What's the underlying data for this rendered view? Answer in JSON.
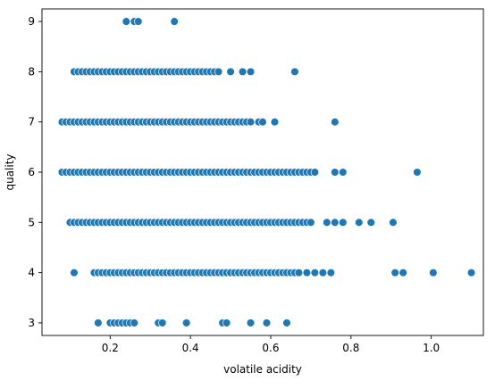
{
  "chart_data": {
    "type": "scatter",
    "title": "",
    "xlabel": "volatile acidity",
    "ylabel": "quality",
    "xlim": [
      0.03,
      1.13
    ],
    "ylim": [
      2.75,
      9.25
    ],
    "x_ticks": [
      0.2,
      0.4,
      0.6,
      0.8,
      1.0
    ],
    "x_tick_labels": [
      "0.2",
      "0.4",
      "0.6",
      "0.8",
      "1.0"
    ],
    "y_ticks": [
      3,
      4,
      5,
      6,
      7,
      8,
      9
    ],
    "y_tick_labels": [
      "3",
      "4",
      "5",
      "6",
      "7",
      "8",
      "9"
    ],
    "grid": false,
    "legend": "none",
    "marker_color": "#1f77b4",
    "marker_edge_color": "#ffffff",
    "series": [
      {
        "rows": [
          {
            "y": 9,
            "x": [
              0.24,
              0.26,
              0.27,
              0.36
            ]
          },
          {
            "y": 8,
            "dense_from": 0.11,
            "dense_to": 0.47,
            "step": 0.01,
            "x": [
              0.5,
              0.53,
              0.55,
              0.66
            ]
          },
          {
            "y": 7,
            "dense_from": 0.08,
            "dense_to": 0.55,
            "step": 0.01,
            "x": [
              0.57,
              0.58,
              0.61,
              0.76
            ]
          },
          {
            "y": 6,
            "dense_from": 0.08,
            "dense_to": 0.7,
            "step": 0.01,
            "x": [
              0.71,
              0.76,
              0.78,
              0.965
            ]
          },
          {
            "y": 5,
            "dense_from": 0.1,
            "dense_to": 0.69,
            "step": 0.01,
            "x": [
              0.7,
              0.74,
              0.76,
              0.78,
              0.82,
              0.85,
              0.905
            ]
          },
          {
            "y": 4,
            "dense_from": 0.16,
            "dense_to": 0.67,
            "step": 0.01,
            "x": [
              0.11,
              0.69,
              0.71,
              0.73,
              0.75,
              0.91,
              0.93,
              1.005,
              1.1
            ]
          },
          {
            "y": 3,
            "x": [
              0.17,
              0.2,
              0.21,
              0.22,
              0.23,
              0.24,
              0.25,
              0.26,
              0.32,
              0.33,
              0.39,
              0.48,
              0.49,
              0.55,
              0.59,
              0.64
            ]
          }
        ]
      }
    ]
  }
}
